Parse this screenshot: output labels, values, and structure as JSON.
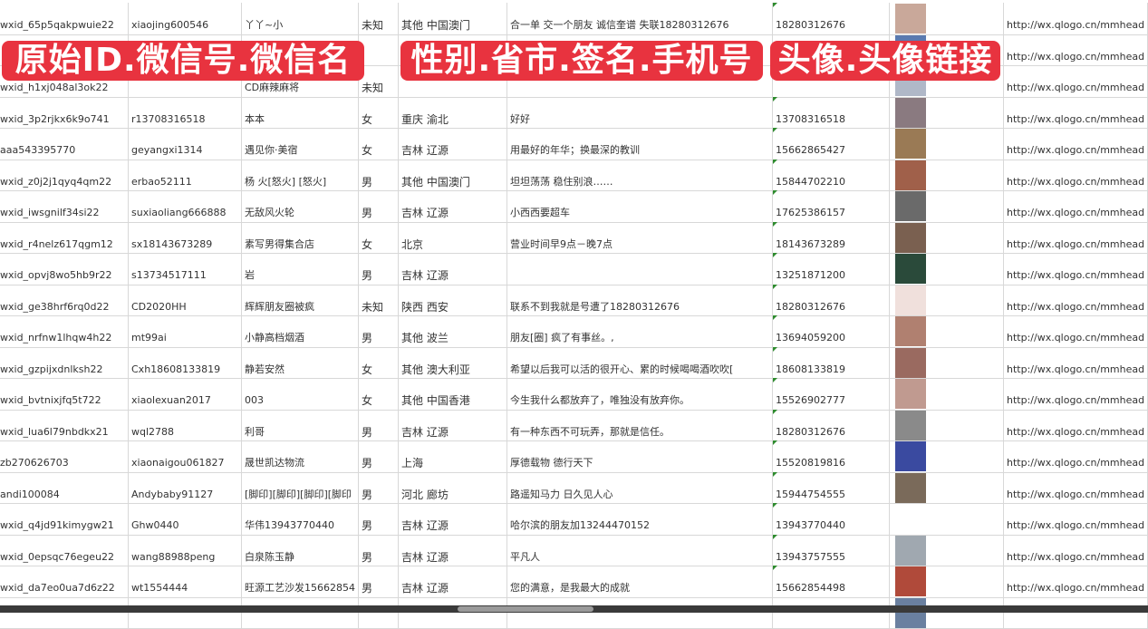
{
  "banners": [
    "原始ID.微信号.微信名",
    "性别.省市.签名.手机号",
    "头像.头像链接"
  ],
  "colors": {
    "banner": "#e8333f",
    "grid": "#d8d8d8"
  },
  "rows": [
    {
      "id": "wxid_65p5qakpwuie22",
      "wechat": "xiaojing600546",
      "name": "丫丫~小",
      "gender": "未知",
      "region": "其他 中国澳门",
      "signature": "合一单 交一个朋友 诚信奎谱 失联18280312676",
      "phone": "18280312676",
      "avatar": "#c9a89a",
      "url": "http://wx.qlogo.cn/mmhead"
    },
    {
      "id": "",
      "wechat": "",
      "name": "",
      "gender": "",
      "region": "",
      "signature": "",
      "phone": "",
      "avatar": "#5a7ab0",
      "url": "http://wx.qlogo.cn/mmhead"
    },
    {
      "id": "wxid_h1xj048al3ok22",
      "wechat": "",
      "name": "CD麻辣麻将",
      "gender": "未知",
      "region": "",
      "signature": "",
      "phone": "",
      "avatar": "#b0b8c8",
      "url": "http://wx.qlogo.cn/mmhead"
    },
    {
      "id": "wxid_3p2rjkx6k9o741",
      "wechat": "r13708316518",
      "name": "本本",
      "gender": "女",
      "region": "重庆 渝北",
      "signature": "好好",
      "phone": "13708316518",
      "avatar": "#8a7a80",
      "url": "http://wx.qlogo.cn/mmhead"
    },
    {
      "id": "aaa543395770",
      "wechat": "geyangxi1314",
      "name": "遇见你·美宿",
      "gender": "女",
      "region": "吉林 辽源",
      "signature": "用最好的年华；换最深的教训",
      "phone": "15662865427",
      "avatar": "#9a7a55",
      "url": "http://wx.qlogo.cn/mmhead"
    },
    {
      "id": "wxid_z0j2j1qyq4qm22",
      "wechat": "erbao52111",
      "name": "杨 火[怒火] [怒火]",
      "gender": "男",
      "region": "其他 中国澳门",
      "signature": "坦坦荡荡 稳住别浪……",
      "phone": "15844702210",
      "avatar": "#a0604a",
      "url": "http://wx.qlogo.cn/mmhead"
    },
    {
      "id": "wxid_iwsgnilf34si22",
      "wechat": "suxiaoliang666888",
      "name": "无敌风火轮",
      "gender": "男",
      "region": "吉林 辽源",
      "signature": "小西西要超车",
      "phone": "17625386157",
      "avatar": "#6a6a6a",
      "url": "http://wx.qlogo.cn/mmhead"
    },
    {
      "id": "wxid_r4nelz617qgm12",
      "wechat": "sx18143673289",
      "name": "素写男得集合店",
      "gender": "女",
      "region": "北京",
      "signature": "营业时间早9点－晚7点",
      "phone": "18143673289",
      "avatar": "#7a6050",
      "url": "http://wx.qlogo.cn/mmhead"
    },
    {
      "id": "wxid_opvj8wo5hb9r22",
      "wechat": "s13734517111",
      "name": "岩",
      "gender": "男",
      "region": "吉林 辽源",
      "signature": "",
      "phone": "13251871200",
      "avatar": "#2a4a3a",
      "url": "http://wx.qlogo.cn/mmhead"
    },
    {
      "id": "wxid_ge38hrf6rq0d22",
      "wechat": "CD2020HH",
      "name": "辉辉朋友圈被疯",
      "gender": "未知",
      "region": "陕西 西安",
      "signature": "联系不到我就是号遭了18280312676",
      "phone": "18280312676",
      "avatar": "#f0e0dc",
      "url": "http://wx.qlogo.cn/mmhead"
    },
    {
      "id": "wxid_nrfnw1lhqw4h22",
      "wechat": "mt99ai",
      "name": "小静高档烟酒",
      "gender": "男",
      "region": "其他 波兰",
      "signature": "朋友[圈] 疯了有事丝。,",
      "phone": "13694059200",
      "avatar": "#b08070",
      "url": "http://wx.qlogo.cn/mmhead"
    },
    {
      "id": "wxid_gzpijxdnlksh22",
      "wechat": "Cxh18608133819",
      "name": "静若安然",
      "gender": "女",
      "region": "其他 澳大利亚",
      "signature": "希望以后我可以活的很开心、累的时候喝喝酒吹吹[",
      "phone": "18608133819",
      "avatar": "#9a6a60",
      "url": "http://wx.qlogo.cn/mmhead"
    },
    {
      "id": "wxid_bvtnixjfq5t722",
      "wechat": "xiaolexuan2017",
      "name": "003",
      "gender": "女",
      "region": "其他 中国香港",
      "signature": "今生我什么都放弃了，唯独没有放弃你。",
      "phone": "15526902777",
      "avatar": "#c09a90",
      "url": "http://wx.qlogo.cn/mmhead"
    },
    {
      "id": "wxid_lua6l79nbdkx21",
      "wechat": "wql2788",
      "name": "利哥",
      "gender": "男",
      "region": "吉林 辽源",
      "signature": "有一种东西不可玩弄，那就是信任。",
      "phone": "18280312676",
      "avatar": "#8a8a8a",
      "url": "http://wx.qlogo.cn/mmhead"
    },
    {
      "id": "zb270626703",
      "wechat": "xiaonaigou061827",
      "name": "晟世凯达物流",
      "gender": "男",
      "region": "上海",
      "signature": "厚德载物 德行天下",
      "phone": "15520819816",
      "avatar": "#3a4aa0",
      "url": "http://wx.qlogo.cn/mmhead"
    },
    {
      "id": "andi100084",
      "wechat": "Andybaby91127",
      "name": "[脚印][脚印][脚印][脚印",
      "gender": "男",
      "region": "河北 廊坊",
      "signature": "路遥知马力 日久见人心",
      "phone": "15944754555",
      "avatar": "#7a6a5a",
      "url": "http://wx.qlogo.cn/mmhead"
    },
    {
      "id": "wxid_q4jd91kimygw21",
      "wechat": "Ghw0440",
      "name": "华伟13943770440",
      "gender": "男",
      "region": "吉林 辽源",
      "signature": "哈尔滨的朋友加13244470152",
      "phone": "13943770440",
      "avatar": "#ffffff",
      "url": "http://wx.qlogo.cn/mmhead"
    },
    {
      "id": "wxid_0epsqc76egeu22",
      "wechat": "wang88988peng",
      "name": "白泉陈玉静",
      "gender": "男",
      "region": "吉林 辽源",
      "signature": "平凡人",
      "phone": "13943757555",
      "avatar": "#a0a8b0",
      "url": "http://wx.qlogo.cn/mmhead"
    },
    {
      "id": "wxid_da7eo0ua7d6z22",
      "wechat": "wt1554444",
      "name": "旺源工艺沙发15662854",
      "gender": "男",
      "region": "吉林 辽源",
      "signature": "您的满意，是我最大的成就",
      "phone": "15662854498",
      "avatar": "#b04a3a",
      "url": "http://wx.qlogo.cn/mmhead"
    },
    {
      "id": "",
      "wechat": "",
      "name": "",
      "gender": "",
      "region": "",
      "signature": "",
      "phone": "",
      "avatar": "#6a80a0",
      "url": ""
    }
  ]
}
